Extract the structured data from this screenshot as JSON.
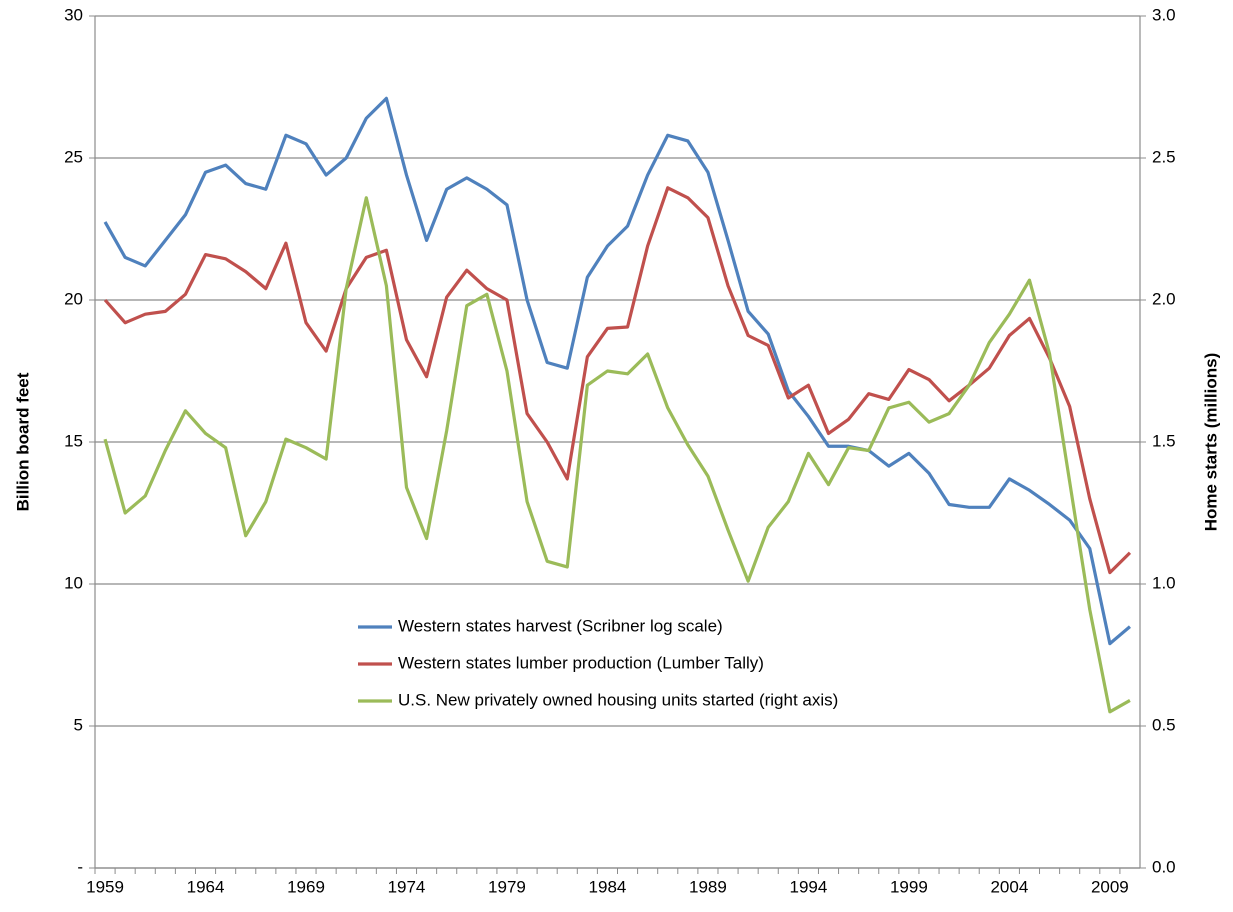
{
  "chart_data": {
    "type": "line",
    "ylabel": "Billion board feet",
    "y2label": "Home starts (millions)",
    "categories": [
      "1959",
      null,
      null,
      null,
      null,
      "1964",
      null,
      null,
      null,
      null,
      "1969",
      null,
      null,
      null,
      null,
      "1974",
      null,
      null,
      null,
      null,
      "1979",
      null,
      null,
      null,
      null,
      "1984",
      null,
      null,
      null,
      null,
      "1989",
      null,
      null,
      null,
      null,
      "1994",
      null,
      null,
      null,
      null,
      "1999",
      null,
      null,
      null,
      null,
      "2004",
      null,
      null,
      null,
      null,
      "2009",
      null
    ],
    "ylim": [
      0,
      30
    ],
    "yticks": [
      {
        "value": 0,
        "label": "-"
      },
      5,
      10,
      15,
      20,
      25,
      30
    ],
    "y2lim": [
      0,
      3
    ],
    "y2ticks": [
      {
        "value": 0,
        "label": "0.0"
      },
      0.5,
      {
        "value": 1,
        "label": "1.0"
      },
      1.5,
      {
        "value": 2,
        "label": "2.0"
      },
      2.5,
      {
        "value": 3,
        "label": "3.0"
      }
    ],
    "grid": true,
    "legend": "center",
    "series": [
      {
        "name": "Western states harvest (Scribner log scale)",
        "color": "#4f81bd",
        "values": [
          22.75,
          21.5,
          21.2,
          22.1,
          23.0,
          24.5,
          24.75,
          24.1,
          23.9,
          25.8,
          25.5,
          24.4,
          25.0,
          26.4,
          27.1,
          24.4,
          22.1,
          23.9,
          24.3,
          23.9,
          23.35,
          20.0,
          17.8,
          17.6,
          20.8,
          21.9,
          22.6,
          24.4,
          25.8,
          25.6,
          24.5,
          22.1,
          19.6,
          18.8,
          16.8,
          15.9,
          14.85,
          14.85,
          14.7,
          14.15,
          14.6,
          13.9,
          12.8,
          12.7,
          12.7,
          13.7,
          13.3,
          12.8,
          12.25,
          11.25,
          7.9,
          8.5
        ]
      },
      {
        "name": "Western states lumber production (Lumber Tally)",
        "color": "#c0504d",
        "values": [
          20.0,
          19.2,
          19.5,
          19.6,
          20.2,
          21.6,
          21.45,
          21.0,
          20.4,
          22.0,
          19.2,
          18.2,
          20.4,
          21.5,
          21.75,
          18.6,
          17.3,
          20.1,
          21.05,
          20.4,
          20.0,
          16.0,
          15.0,
          13.7,
          18.0,
          19.0,
          19.05,
          21.9,
          23.95,
          23.6,
          22.9,
          20.5,
          18.75,
          18.4,
          16.55,
          17.0,
          15.3,
          15.8,
          16.7,
          16.5,
          17.55,
          17.2,
          16.45,
          17.0,
          17.6,
          18.75,
          19.35,
          17.95,
          16.25,
          13.0,
          10.4,
          11.1
        ]
      },
      {
        "name": "U.S. New privately owned housing units started (right axis)",
        "color": "#9bbb59",
        "axis": "y2",
        "values": [
          1.51,
          1.25,
          1.31,
          1.47,
          1.61,
          1.53,
          1.48,
          1.17,
          1.29,
          1.51,
          1.48,
          1.44,
          2.04,
          2.36,
          2.05,
          1.34,
          1.16,
          1.54,
          1.98,
          2.02,
          1.75,
          1.29,
          1.08,
          1.06,
          1.7,
          1.75,
          1.74,
          1.81,
          1.62,
          1.49,
          1.38,
          1.19,
          1.01,
          1.2,
          1.29,
          1.46,
          1.35,
          1.48,
          1.47,
          1.62,
          1.64,
          1.57,
          1.6,
          1.7,
          1.85,
          1.95,
          2.07,
          1.81,
          1.36,
          0.91,
          0.55,
          0.59
        ]
      }
    ]
  }
}
